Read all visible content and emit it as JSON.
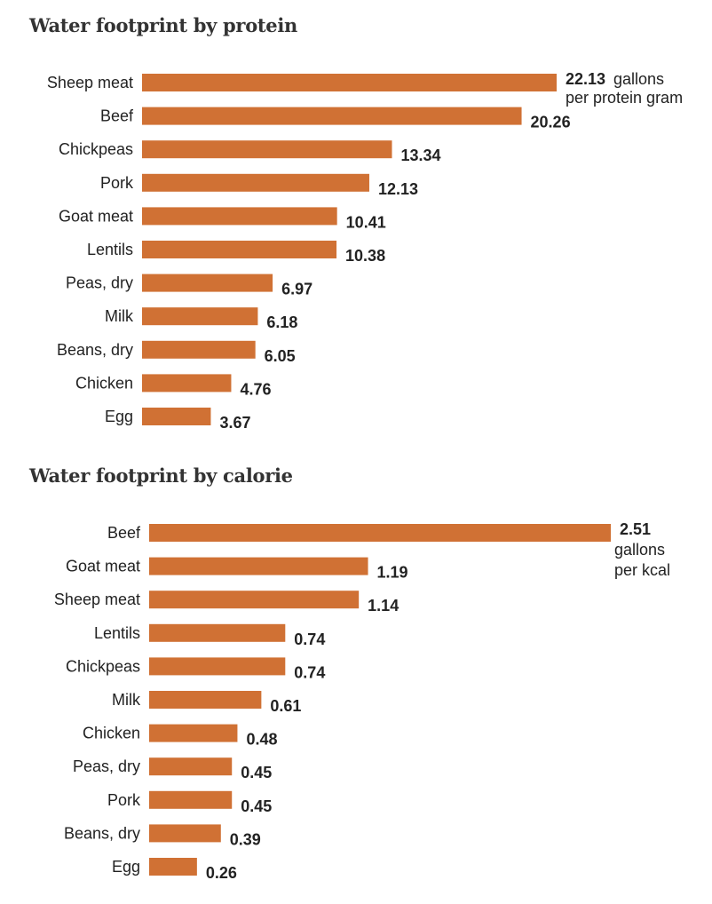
{
  "chart_data": [
    {
      "type": "bar",
      "orientation": "horizontal",
      "title": "Water footprint by protein",
      "categories": [
        "Sheep meat",
        "Beef",
        "Chickpeas",
        "Pork",
        "Goat meat",
        "Lentils",
        "Peas, dry",
        "Milk",
        "Beans, dry",
        "Chicken",
        "Egg"
      ],
      "values": [
        22.13,
        20.26,
        13.34,
        12.13,
        10.41,
        10.38,
        6.97,
        6.18,
        6.05,
        4.76,
        3.67
      ],
      "value_labels": [
        "22.13",
        "20.26",
        "13.34",
        "12.13",
        "10.41",
        "10.38",
        "6.97",
        "6.18",
        "6.05",
        "4.76",
        "3.67"
      ],
      "unit_annotation": [
        "gallons",
        "per protein gram"
      ],
      "bar_color": "#d07134",
      "xlabel": "",
      "ylabel": "",
      "xlim": [
        0,
        22.13
      ],
      "grid": false
    },
    {
      "type": "bar",
      "orientation": "horizontal",
      "title": "Water footprint by calorie",
      "categories": [
        "Beef",
        "Goat meat",
        "Sheep meat",
        "Lentils",
        "Chickpeas",
        "Milk",
        "Chicken",
        "Peas, dry",
        "Pork",
        "Beans, dry",
        "Egg"
      ],
      "values": [
        2.51,
        1.19,
        1.14,
        0.74,
        0.74,
        0.61,
        0.48,
        0.45,
        0.45,
        0.39,
        0.26
      ],
      "value_labels": [
        "2.51",
        "1.19",
        "1.14",
        "0.74",
        "0.74",
        "0.61",
        "0.48",
        "0.45",
        "0.45",
        "0.39",
        "0.26"
      ],
      "unit_annotation": [
        "gallons",
        "per kcal"
      ],
      "bar_color": "#d07134",
      "xlabel": "",
      "ylabel": "",
      "xlim": [
        0,
        2.51
      ],
      "grid": false
    }
  ]
}
